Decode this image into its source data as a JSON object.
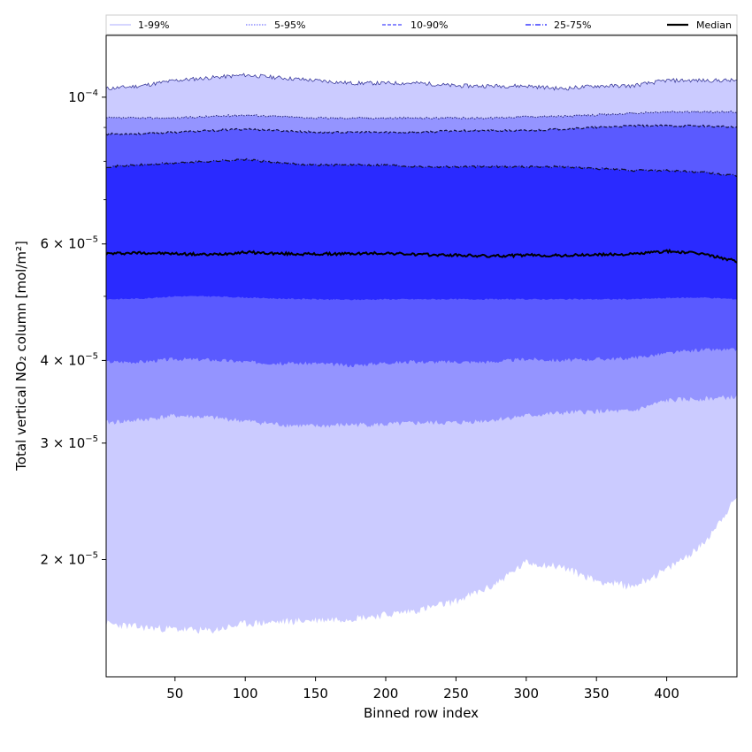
{
  "chart_data": {
    "type": "area",
    "xlabel": "Binned row index",
    "ylabel": "Total vertical NO₂ column [mol/m²]",
    "yscale": "log",
    "xlim": [
      1,
      450
    ],
    "ylim": [
      1.33e-05,
      0.000124
    ],
    "x_ticks": [
      {
        "value": 50,
        "label": "50"
      },
      {
        "value": 100,
        "label": "100"
      },
      {
        "value": 150,
        "label": "150"
      },
      {
        "value": 200,
        "label": "200"
      },
      {
        "value": 250,
        "label": "250"
      },
      {
        "value": 300,
        "label": "300"
      },
      {
        "value": 350,
        "label": "350"
      },
      {
        "value": 400,
        "label": "400"
      }
    ],
    "y_ticks": [
      {
        "value": 2e-05,
        "mantissa": "2",
        "exp": "-5"
      },
      {
        "value": 3e-05,
        "mantissa": "3",
        "exp": "-5"
      },
      {
        "value": 4e-05,
        "mantissa": "4",
        "exp": "-5"
      },
      {
        "value": 6e-05,
        "mantissa": "6",
        "exp": "-5"
      },
      {
        "value": 0.0001,
        "mantissa": "10",
        "exp": "-4"
      }
    ],
    "y_minor_ticks": [
      5e-05,
      7e-05,
      8e-05,
      9e-05
    ],
    "legend": {
      "placement": "top",
      "entries": [
        {
          "label": "1-99%",
          "color": "#c8c8ff",
          "style": "solid"
        },
        {
          "label": "5-95%",
          "color": "#8c8cff",
          "style": "dotted"
        },
        {
          "label": "10-90%",
          "color": "#6464ff",
          "style": "dashed"
        },
        {
          "label": "25-75%",
          "color": "#3c3cff",
          "style": "dashdot"
        },
        {
          "label": "Median",
          "color": "#000000",
          "style": "solid"
        }
      ]
    },
    "x": [
      1,
      25,
      50,
      75,
      100,
      125,
      150,
      175,
      200,
      225,
      250,
      275,
      300,
      325,
      350,
      375,
      400,
      425,
      450
    ],
    "bands": [
      {
        "name": "1-99%",
        "color": "#cbcbff",
        "upper": [
          0.000103,
          0.000104,
          0.000106,
          0.000107,
          0.000108,
          0.000107,
          0.000106,
          0.000105,
          0.000105,
          0.000105,
          0.000104,
          0.000104,
          0.000104,
          0.000103,
          0.000104,
          0.000104,
          0.000106,
          0.000106,
          0.000106
        ],
        "lower": [
          1.6e-05,
          1.58e-05,
          1.57e-05,
          1.56e-05,
          1.6e-05,
          1.61e-05,
          1.62e-05,
          1.63e-05,
          1.65e-05,
          1.68e-05,
          1.73e-05,
          1.82e-05,
          1.98e-05,
          1.95e-05,
          1.86e-05,
          1.82e-05,
          1.93e-05,
          2.1e-05,
          2.48e-05
        ]
      },
      {
        "name": "5-95%",
        "color": "#9494ff",
        "upper": [
          9.3e-05,
          9.3e-05,
          9.3e-05,
          9.35e-05,
          9.4e-05,
          9.35e-05,
          9.3e-05,
          9.3e-05,
          9.3e-05,
          9.3e-05,
          9.3e-05,
          9.3e-05,
          9.35e-05,
          9.35e-05,
          9.4e-05,
          9.45e-05,
          9.5e-05,
          9.5e-05,
          9.5e-05
        ]
      },
      {
        "name": "10-90%",
        "color": "#5a5aff",
        "upper": [
          8.8e-05,
          8.8e-05,
          8.85e-05,
          8.9e-05,
          8.95e-05,
          8.9e-05,
          8.85e-05,
          8.85e-05,
          8.85e-05,
          8.85e-05,
          8.9e-05,
          8.9e-05,
          8.9e-05,
          8.95e-05,
          9e-05,
          9.05e-05,
          9.05e-05,
          9.05e-05,
          9e-05
        ],
        "lower": [
          3.98e-05,
          3.98e-05,
          4.02e-05,
          4.01e-05,
          3.98e-05,
          3.96e-05,
          3.96e-05,
          3.93e-05,
          3.97e-05,
          3.98e-05,
          3.98e-05,
          3.98e-05,
          4.02e-05,
          4e-05,
          4.02e-05,
          4.03e-05,
          4.1e-05,
          4.15e-05,
          4.15e-05
        ]
      },
      {
        "name": "25-75%",
        "color": "#2a2aff",
        "upper": [
          7.85e-05,
          7.9e-05,
          7.95e-05,
          8e-05,
          8.05e-05,
          7.95e-05,
          7.9e-05,
          7.9e-05,
          7.9e-05,
          7.85e-05,
          7.85e-05,
          7.85e-05,
          7.85e-05,
          7.85e-05,
          7.8e-05,
          7.75e-05,
          7.75e-05,
          7.7e-05,
          7.6e-05
        ]
      }
    ],
    "band_edges": [
      {
        "name": "5-95% lower",
        "values": [
          3.22e-05,
          3.25e-05,
          3.3e-05,
          3.28e-05,
          3.24e-05,
          3.2e-05,
          3.18e-05,
          3.2e-05,
          3.2e-05,
          3.22e-05,
          3.22e-05,
          3.25e-05,
          3.3e-05,
          3.33e-05,
          3.35e-05,
          3.35e-05,
          3.48e-05,
          3.5e-05,
          3.52e-05
        ]
      },
      {
        "name": "25-75% lower",
        "values": [
          4.95e-05,
          4.96e-05,
          5e-05,
          5e-05,
          4.98e-05,
          4.96e-05,
          4.95e-05,
          4.94e-05,
          4.95e-05,
          4.95e-05,
          4.95e-05,
          4.95e-05,
          4.95e-05,
          4.95e-05,
          4.95e-05,
          4.95e-05,
          4.97e-05,
          4.98e-05,
          4.95e-05
        ]
      }
    ],
    "series": [
      {
        "name": "Median",
        "color": "#000000",
        "values": [
          5.8e-05,
          5.82e-05,
          5.8e-05,
          5.78e-05,
          5.83e-05,
          5.8e-05,
          5.79e-05,
          5.8e-05,
          5.81e-05,
          5.78e-05,
          5.77e-05,
          5.75e-05,
          5.77e-05,
          5.76e-05,
          5.78e-05,
          5.79e-05,
          5.85e-05,
          5.8e-05,
          5.65e-05
        ]
      }
    ]
  }
}
